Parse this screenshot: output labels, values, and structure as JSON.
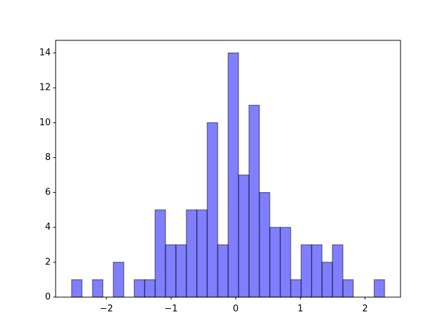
{
  "chart_data": {
    "type": "histogram",
    "bins": [
      -2.538,
      -2.377,
      -2.215,
      -2.054,
      -1.893,
      -1.731,
      -1.57,
      -1.409,
      -1.247,
      -1.086,
      -0.925,
      -0.763,
      -0.602,
      -0.441,
      -0.279,
      -0.118,
      0.043,
      0.205,
      0.366,
      0.527,
      0.689,
      0.85,
      1.011,
      1.173,
      1.334,
      1.495,
      1.657,
      1.818,
      1.979,
      2.141,
      2.302
    ],
    "values": [
      1,
      0,
      1,
      0,
      2,
      0,
      1,
      1,
      5,
      3,
      3,
      5,
      5,
      10,
      3,
      14,
      7,
      11,
      6,
      4,
      4,
      1,
      3,
      3,
      2,
      3,
      1,
      0,
      0,
      1
    ],
    "color": "#0000ff",
    "xlim": [
      -2.785,
      2.548
    ],
    "ylim": [
      0,
      14.72
    ],
    "xticks": [
      {
        "value": -2,
        "label": "−2"
      },
      {
        "value": -1,
        "label": "−1"
      },
      0,
      1,
      2
    ],
    "yticks": [
      0,
      2,
      4,
      6,
      8,
      10,
      12,
      14
    ]
  }
}
